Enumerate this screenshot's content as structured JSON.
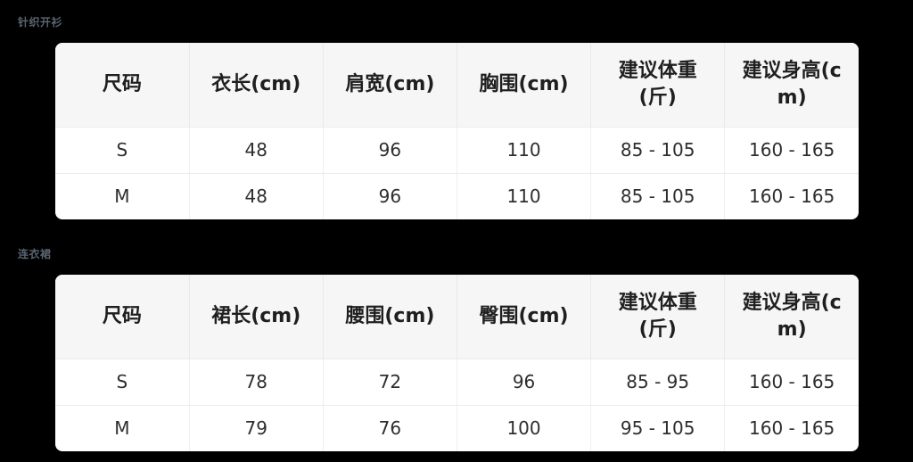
{
  "colors": {
    "page_background": "#000000",
    "section_title_color": "#5a6472",
    "table_header_background": "#f6f6f7",
    "table_background": "#ffffff"
  },
  "sections": [
    {
      "title": "针织开衫",
      "table": {
        "headers": [
          "尺码",
          "衣长(cm)",
          "肩宽(cm)",
          "胸围(cm)",
          "建议体重(斤)",
          "建议身高(cm)"
        ],
        "rows": [
          [
            "S",
            "48",
            "96",
            "110",
            "85 - 105",
            "160 - 165"
          ],
          [
            "M",
            "48",
            "96",
            "110",
            "85 - 105",
            "160 - 165"
          ]
        ]
      }
    },
    {
      "title": "连衣裙",
      "table": {
        "headers": [
          "尺码",
          "裙长(cm)",
          "腰围(cm)",
          "臀围(cm)",
          "建议体重(斤)",
          "建议身高(cm)"
        ],
        "rows": [
          [
            "S",
            "78",
            "72",
            "96",
            "85 - 95",
            "160 - 165"
          ],
          [
            "M",
            "79",
            "76",
            "100",
            "95 - 105",
            "160 - 165"
          ]
        ]
      }
    }
  ]
}
